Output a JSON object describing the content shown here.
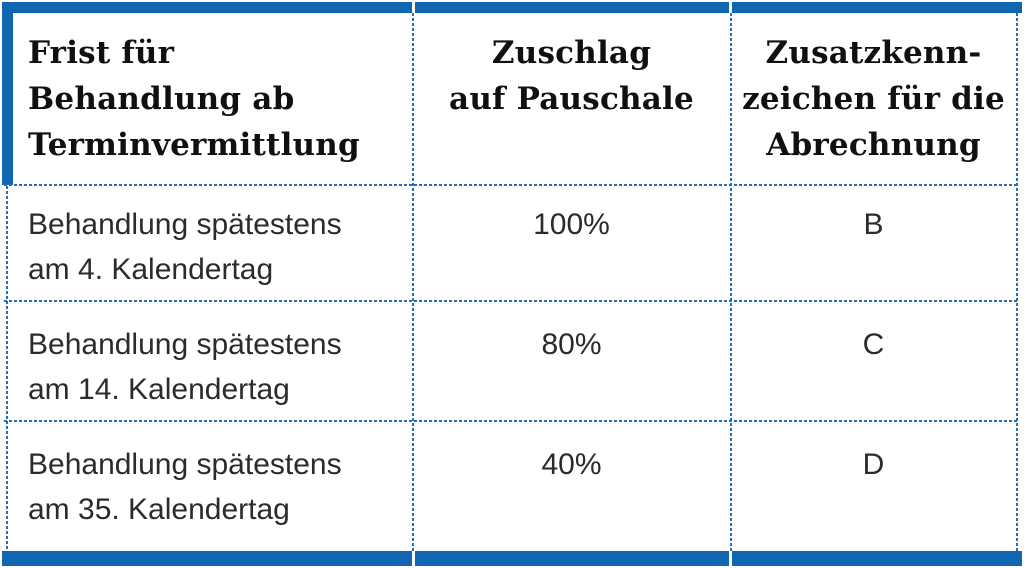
{
  "colors": {
    "accent_blue": "#1066b0",
    "divider_blue": "#2470b3",
    "header_text": "#101010",
    "body_text": "#2b2b2b",
    "background": "#ffffff"
  },
  "table": {
    "headers": [
      {
        "lines": [
          "Frist für",
          "Behandlung ab",
          "Terminvermittlung"
        ]
      },
      {
        "lines": [
          "Zuschlag",
          "auf Pauschale"
        ]
      },
      {
        "lines": [
          "Zusatzkenn-",
          "zeichen für die",
          "Abrechnung"
        ]
      }
    ],
    "rows": [
      {
        "frist": [
          "Behandlung spätestens",
          "am 4. Kalendertag"
        ],
        "zuschlag": "100%",
        "kennzeichen": "B"
      },
      {
        "frist": [
          "Behandlung spätestens",
          "am 14. Kalendertag"
        ],
        "zuschlag": "80%",
        "kennzeichen": "C"
      },
      {
        "frist": [
          "Behandlung spätestens",
          "am 35. Kalendertag"
        ],
        "zuschlag": "40%",
        "kennzeichen": "D"
      }
    ]
  }
}
